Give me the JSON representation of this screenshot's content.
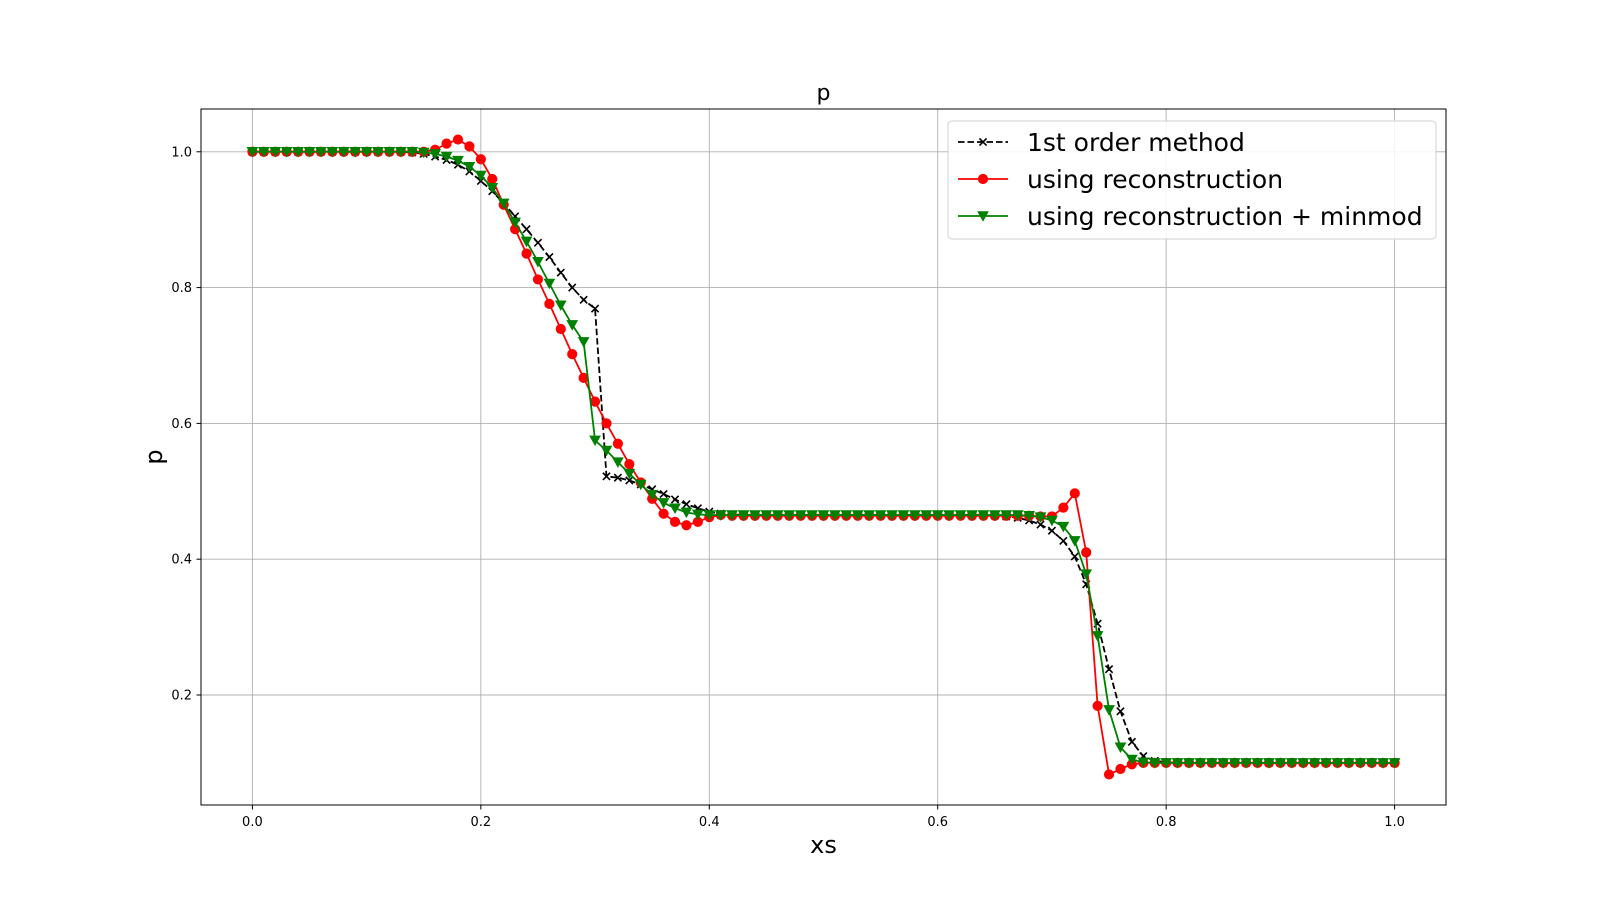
{
  "chart_data": {
    "type": "line",
    "title": "p",
    "xlabel": "xs",
    "ylabel": "p",
    "xlim": [
      -0.045,
      1.045
    ],
    "ylim": [
      0.038,
      1.063
    ],
    "xticks": [
      0.0,
      0.2,
      0.4,
      0.6,
      0.8,
      1.0
    ],
    "xtick_labels": [
      "0.0",
      "0.2",
      "0.4",
      "0.6",
      "0.8",
      "1.0"
    ],
    "yticks": [
      0.2,
      0.4,
      0.6,
      0.8,
      1.0
    ],
    "ytick_labels": [
      "0.2",
      "0.4",
      "0.6",
      "0.8",
      "1.0"
    ],
    "grid": true,
    "legend_position": "top-right",
    "x": [
      0.0,
      0.01,
      0.02,
      0.03,
      0.04,
      0.05,
      0.06,
      0.07,
      0.08,
      0.09,
      0.1,
      0.11,
      0.12,
      0.13,
      0.14,
      0.15,
      0.16,
      0.17,
      0.18,
      0.19,
      0.2,
      0.21,
      0.22,
      0.23,
      0.24,
      0.25,
      0.26,
      0.27,
      0.28,
      0.29,
      0.3,
      0.31,
      0.32,
      0.33,
      0.34,
      0.35,
      0.36,
      0.37,
      0.38,
      0.39,
      0.4,
      0.41,
      0.42,
      0.43,
      0.44,
      0.45,
      0.46,
      0.47,
      0.48,
      0.49,
      0.5,
      0.51,
      0.52,
      0.53,
      0.54,
      0.55,
      0.56,
      0.57,
      0.58,
      0.59,
      0.6,
      0.61,
      0.62,
      0.63,
      0.64,
      0.65,
      0.66,
      0.67,
      0.68,
      0.69,
      0.7,
      0.71,
      0.72,
      0.73,
      0.74,
      0.75,
      0.76,
      0.77,
      0.78,
      0.79,
      0.8,
      0.81,
      0.82,
      0.83,
      0.84,
      0.85,
      0.86,
      0.87,
      0.88,
      0.89,
      0.9,
      0.91,
      0.92,
      0.93,
      0.94,
      0.95,
      0.96,
      0.97,
      0.98,
      0.99,
      1.0
    ],
    "series": [
      {
        "name": "1st order method",
        "color": "#000000",
        "dash": true,
        "marker": "x",
        "values": [
          1.0,
          1.0,
          1.0,
          1.0,
          1.0,
          1.0,
          1.0,
          1.0,
          1.0,
          1.0,
          1.0,
          1.0,
          1.0,
          1.0,
          0.999,
          0.997,
          0.993,
          0.988,
          0.981,
          0.971,
          0.957,
          0.942,
          0.924,
          0.905,
          0.886,
          0.866,
          0.845,
          0.822,
          0.8,
          0.782,
          0.769,
          0.522,
          0.52,
          0.516,
          0.51,
          0.503,
          0.496,
          0.488,
          0.481,
          0.475,
          0.47,
          0.467,
          0.466,
          0.465,
          0.465,
          0.465,
          0.465,
          0.465,
          0.465,
          0.465,
          0.465,
          0.465,
          0.465,
          0.465,
          0.465,
          0.465,
          0.465,
          0.465,
          0.465,
          0.465,
          0.465,
          0.465,
          0.465,
          0.465,
          0.465,
          0.464,
          0.463,
          0.461,
          0.457,
          0.451,
          0.442,
          0.427,
          0.404,
          0.363,
          0.305,
          0.238,
          0.176,
          0.131,
          0.11,
          0.103,
          0.101,
          0.1,
          0.1,
          0.1,
          0.1,
          0.1,
          0.1,
          0.1,
          0.1,
          0.1,
          0.1,
          0.1,
          0.1,
          0.1,
          0.1,
          0.1,
          0.1,
          0.1,
          0.1,
          0.1,
          0.1
        ]
      },
      {
        "name": "using reconstruction",
        "color": "#ff0000",
        "dash": false,
        "marker": "o",
        "values": [
          1.0,
          1.0,
          1.0,
          1.0,
          1.0,
          1.0,
          1.0,
          1.0,
          1.0,
          1.0,
          1.0,
          1.0,
          1.0,
          1.0,
          1.0,
          1.0,
          1.003,
          1.012,
          1.018,
          1.008,
          0.989,
          0.96,
          0.922,
          0.886,
          0.85,
          0.812,
          0.776,
          0.739,
          0.702,
          0.667,
          0.632,
          0.6,
          0.57,
          0.54,
          0.513,
          0.489,
          0.467,
          0.455,
          0.45,
          0.455,
          0.462,
          0.465,
          0.464,
          0.464,
          0.464,
          0.464,
          0.464,
          0.464,
          0.464,
          0.464,
          0.464,
          0.464,
          0.464,
          0.464,
          0.464,
          0.464,
          0.464,
          0.464,
          0.464,
          0.464,
          0.464,
          0.464,
          0.464,
          0.464,
          0.464,
          0.464,
          0.464,
          0.464,
          0.464,
          0.463,
          0.463,
          0.476,
          0.497,
          0.41,
          0.184,
          0.083,
          0.091,
          0.098,
          0.1,
          0.1,
          0.1,
          0.1,
          0.1,
          0.1,
          0.1,
          0.1,
          0.1,
          0.1,
          0.1,
          0.1,
          0.1,
          0.1,
          0.1,
          0.1,
          0.1,
          0.1,
          0.1,
          0.1,
          0.1,
          0.1,
          0.1
        ]
      },
      {
        "name": "using reconstruction + minmod",
        "color": "#008000",
        "dash": false,
        "marker": "v",
        "values": [
          1.0,
          1.0,
          1.0,
          1.0,
          1.0,
          1.0,
          1.0,
          1.0,
          1.0,
          1.0,
          1.0,
          1.0,
          1.0,
          1.0,
          1.0,
          0.999,
          0.997,
          0.993,
          0.987,
          0.978,
          0.965,
          0.947,
          0.924,
          0.896,
          0.868,
          0.838,
          0.806,
          0.774,
          0.745,
          0.72,
          0.575,
          0.56,
          0.543,
          0.526,
          0.51,
          0.495,
          0.483,
          0.475,
          0.469,
          0.466,
          0.465,
          0.465,
          0.465,
          0.465,
          0.465,
          0.465,
          0.465,
          0.465,
          0.465,
          0.465,
          0.465,
          0.465,
          0.465,
          0.465,
          0.465,
          0.465,
          0.465,
          0.465,
          0.465,
          0.465,
          0.465,
          0.465,
          0.465,
          0.465,
          0.465,
          0.465,
          0.465,
          0.465,
          0.464,
          0.462,
          0.457,
          0.448,
          0.427,
          0.378,
          0.287,
          0.178,
          0.123,
          0.105,
          0.101,
          0.1,
          0.1,
          0.1,
          0.1,
          0.1,
          0.1,
          0.1,
          0.1,
          0.1,
          0.1,
          0.1,
          0.1,
          0.1,
          0.1,
          0.1,
          0.1,
          0.1,
          0.1,
          0.1,
          0.1,
          0.1,
          0.1
        ]
      }
    ]
  }
}
